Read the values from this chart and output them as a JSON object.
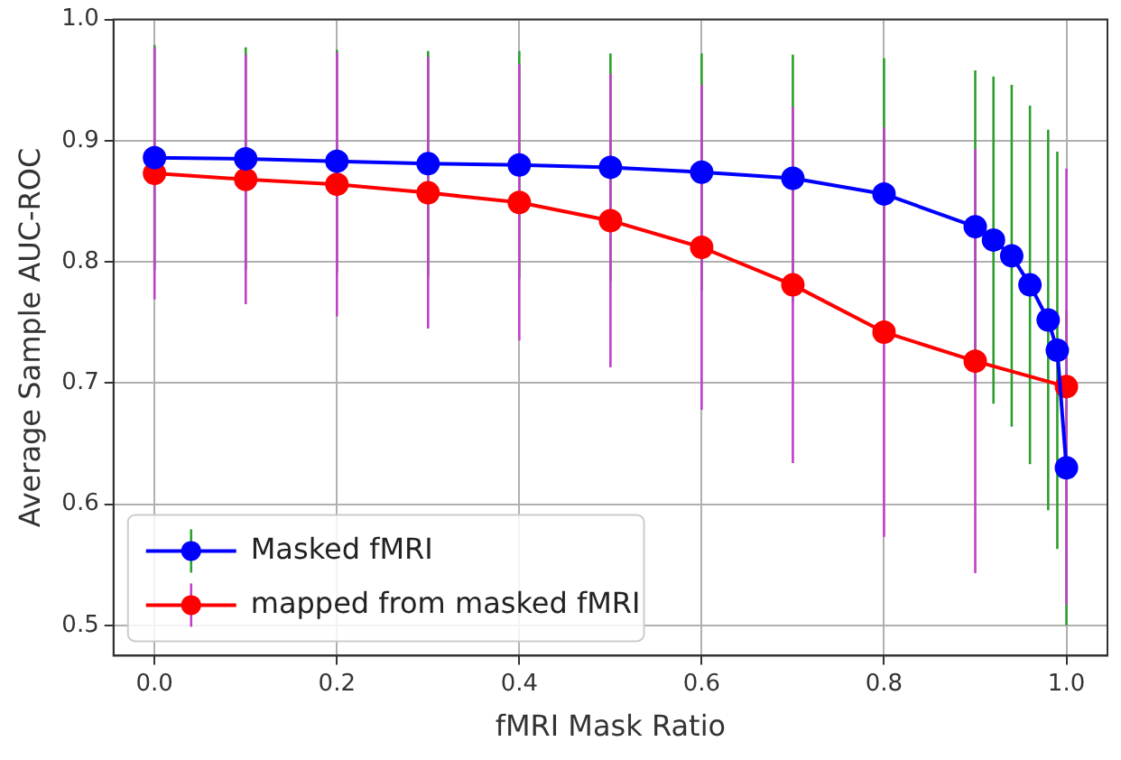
{
  "chart_data": {
    "type": "line",
    "xlabel": "fMRI Mask Ratio",
    "ylabel": "Average Sample AUC-ROC",
    "xlim": [
      -0.045,
      1.045
    ],
    "xticks": [
      {
        "value": 0,
        "label": "0.0"
      },
      0.2,
      0.4,
      0.6,
      0.8,
      {
        "value": 1,
        "label": "1.0"
      }
    ],
    "ylim": [
      0.475,
      1.0
    ],
    "yticks": [
      0.5,
      0.6,
      0.7,
      0.8,
      0.9,
      {
        "value": 1,
        "label": "1.0"
      }
    ],
    "grid": true,
    "legend": "bottom left",
    "marker": "circle",
    "line_style": "solid",
    "series": [
      {
        "name": "Masked fMRI",
        "color": "#0000ff",
        "x": [
          0,
          0.1,
          0.2,
          0.3,
          0.4,
          0.5,
          0.6,
          0.7,
          0.8,
          0.9,
          0.92,
          0.94,
          0.96,
          0.98,
          0.99,
          1.0
        ],
        "values": [
          0.886,
          0.885,
          0.883,
          0.881,
          0.88,
          0.878,
          0.874,
          0.869,
          0.856,
          0.829,
          0.818,
          0.805,
          0.781,
          0.752,
          0.727,
          0.63
        ],
        "errors": [
          0.093,
          0.092,
          0.092,
          0.093,
          0.094,
          0.094,
          0.098,
          0.102,
          0.112,
          0.129,
          0.135,
          0.141,
          0.148,
          0.157,
          0.164,
          0.13
        ]
      },
      {
        "name": "mapped from masked fMRI",
        "color": "#ff0000",
        "x": [
          0,
          0.1,
          0.2,
          0.3,
          0.4,
          0.5,
          0.6,
          0.7,
          0.8,
          0.9,
          1.0
        ],
        "values": [
          0.873,
          0.868,
          0.864,
          0.857,
          0.849,
          0.834,
          0.812,
          0.781,
          0.742,
          0.718,
          0.697
        ],
        "errors": [
          0.104,
          0.103,
          0.109,
          0.112,
          0.114,
          0.121,
          0.134,
          0.147,
          0.169,
          0.175,
          0.18
        ]
      }
    ]
  }
}
